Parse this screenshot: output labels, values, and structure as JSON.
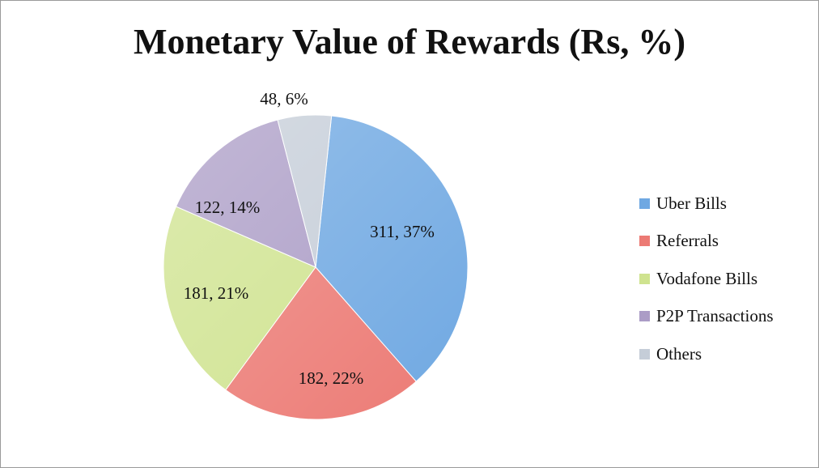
{
  "chart_data": {
    "type": "pie",
    "title": "Monetary Value of Rewards (Rs, %)",
    "legend_position": "right",
    "slices": [
      {
        "name": "Uber Bills",
        "value": 311,
        "percent": 37,
        "label": "311, 37%",
        "color": "#6fa8e2"
      },
      {
        "name": "Referrals",
        "value": 182,
        "percent": 22,
        "label": "182, 22%",
        "color": "#ec7a74"
      },
      {
        "name": "Vodafone Bills",
        "value": 181,
        "percent": 21,
        "label": "181, 21%",
        "color": "#cfe38f"
      },
      {
        "name": "P2P Transactions",
        "value": 122,
        "percent": 14,
        "label": "122, 14%",
        "color": "#ab9cc6"
      },
      {
        "name": "Others",
        "value": 48,
        "percent": 6,
        "label": "48, 6%",
        "color": "#c5cdd8"
      }
    ]
  }
}
